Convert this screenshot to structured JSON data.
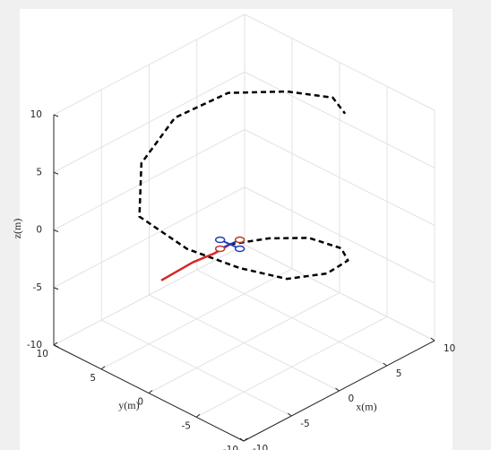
{
  "chart_data": {
    "type": "line3d",
    "xlabel": "x(m)",
    "ylabel": "y(m)",
    "zlabel": "z(m)",
    "xlim": [
      -10,
      10
    ],
    "ylim": [
      -10,
      10
    ],
    "zlim": [
      -10,
      10
    ],
    "xticks": [
      -10,
      -5,
      0,
      5,
      10
    ],
    "yticks": [
      -10,
      -5,
      0,
      5,
      10
    ],
    "zticks": [
      -10,
      -5,
      0,
      5,
      10
    ],
    "grid": true,
    "series": [
      {
        "color": "#000000",
        "style": "dashed",
        "x": [
          1.1,
          3.7,
          5.8,
          6.4,
          5.5,
          3.1,
          0.5,
          -2.0,
          -4.5,
          -6.0,
          -3.4,
          0.6,
          4.1,
          6.1,
          7.0,
          5.3
        ],
        "y": [
          2.6,
          1.1,
          -1.0,
          -3.8,
          -5.4,
          -5.6,
          -4.0,
          -1.5,
          1.5,
          5.0,
          7.4,
          7.9,
          5.8,
          1.6,
          -2.3,
          -5.3
        ],
        "z": [
          -3,
          -3,
          -3,
          -3,
          -3,
          -3,
          -3,
          -2,
          -0.5,
          1.5,
          4,
          6,
          7.5,
          8.5,
          9.2,
          9.8
        ]
      },
      {
        "color": "#d62728",
        "style": "solid",
        "x": [
          -6.1,
          -2.65,
          -0.6,
          1.1
        ],
        "y": [
          2.6,
          2.75,
          2.5,
          2.6
        ],
        "z": [
          -3,
          -3,
          -3,
          -3
        ]
      }
    ]
  }
}
